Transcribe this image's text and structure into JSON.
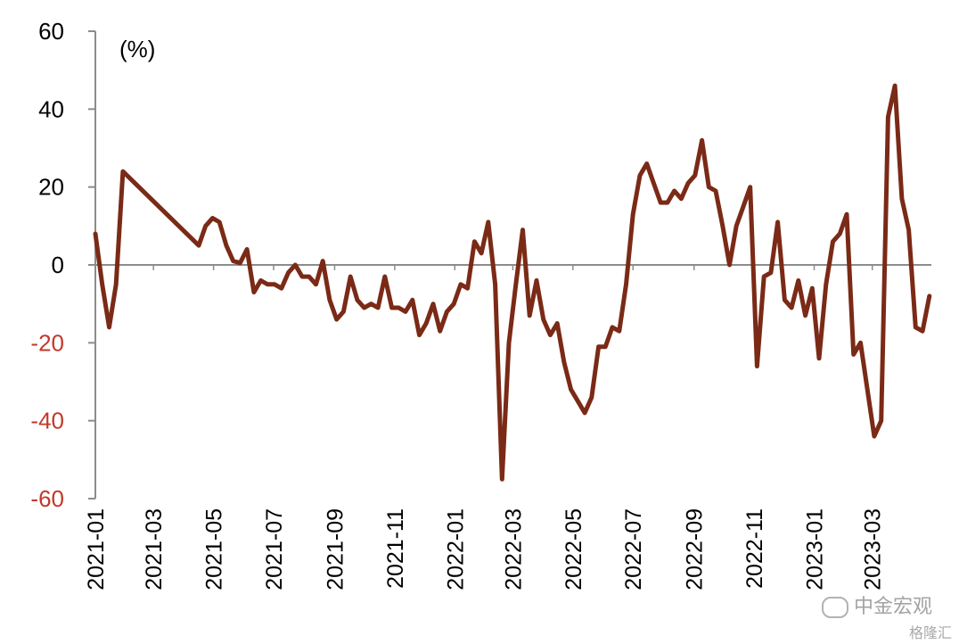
{
  "chart_data": {
    "type": "line",
    "unit_label": "(%)",
    "ylim": [
      -60,
      60
    ],
    "yticks": [
      60,
      40,
      20,
      0,
      -20,
      -40,
      -60
    ],
    "xticks": [
      "2021-01",
      "2021-03",
      "2021-05",
      "2021-07",
      "2021-09",
      "2021-11",
      "2022-01",
      "2022-03",
      "2022-05",
      "2022-07",
      "2022-09",
      "2022-11",
      "2023-01",
      "2023-03"
    ],
    "colors": {
      "line": "#7a2a16",
      "axis": "#8c8c8c",
      "positive_tick": "#000000",
      "negative_tick": "#c0392b"
    },
    "series": [
      {
        "points": [
          [
            "2021-01-01",
            8
          ],
          [
            "2021-01-08",
            -5
          ],
          [
            "2021-01-15",
            -16
          ],
          [
            "2021-01-22",
            -5
          ],
          [
            "2021-01-29",
            24
          ],
          [
            "2021-04-16",
            5
          ],
          [
            "2021-04-23",
            10
          ],
          [
            "2021-04-30",
            12
          ],
          [
            "2021-05-07",
            11
          ],
          [
            "2021-05-14",
            5
          ],
          [
            "2021-05-21",
            1
          ],
          [
            "2021-05-28",
            0.5
          ],
          [
            "2021-06-04",
            4
          ],
          [
            "2021-06-11",
            -7
          ],
          [
            "2021-06-18",
            -4
          ],
          [
            "2021-06-25",
            -5
          ],
          [
            "2021-07-02",
            -5
          ],
          [
            "2021-07-09",
            -6
          ],
          [
            "2021-07-16",
            -2
          ],
          [
            "2021-07-23",
            0
          ],
          [
            "2021-07-30",
            -3
          ],
          [
            "2021-08-06",
            -3
          ],
          [
            "2021-08-13",
            -5
          ],
          [
            "2021-08-20",
            1
          ],
          [
            "2021-08-27",
            -9
          ],
          [
            "2021-09-03",
            -14
          ],
          [
            "2021-09-10",
            -12
          ],
          [
            "2021-09-17",
            -3
          ],
          [
            "2021-09-24",
            -9
          ],
          [
            "2021-10-01",
            -11
          ],
          [
            "2021-10-08",
            -10
          ],
          [
            "2021-10-15",
            -11
          ],
          [
            "2021-10-22",
            -3
          ],
          [
            "2021-10-29",
            -11
          ],
          [
            "2021-11-05",
            -11
          ],
          [
            "2021-11-12",
            -12
          ],
          [
            "2021-11-19",
            -9
          ],
          [
            "2021-11-26",
            -18
          ],
          [
            "2021-12-03",
            -15
          ],
          [
            "2021-12-10",
            -10
          ],
          [
            "2021-12-17",
            -17
          ],
          [
            "2021-12-24",
            -12
          ],
          [
            "2021-12-31",
            -10
          ],
          [
            "2022-01-07",
            -5
          ],
          [
            "2022-01-14",
            -6
          ],
          [
            "2022-01-21",
            6
          ],
          [
            "2022-01-28",
            3
          ],
          [
            "2022-02-04",
            11
          ],
          [
            "2022-02-11",
            -5
          ],
          [
            "2022-02-18",
            -55
          ],
          [
            "2022-02-25",
            -20
          ],
          [
            "2022-03-04",
            -5
          ],
          [
            "2022-03-11",
            9
          ],
          [
            "2022-03-18",
            -13
          ],
          [
            "2022-03-25",
            -4
          ],
          [
            "2022-04-01",
            -14
          ],
          [
            "2022-04-08",
            -18
          ],
          [
            "2022-04-15",
            -15
          ],
          [
            "2022-04-22",
            -25
          ],
          [
            "2022-04-29",
            -32
          ],
          [
            "2022-05-06",
            -35
          ],
          [
            "2022-05-13",
            -38
          ],
          [
            "2022-05-20",
            -34
          ],
          [
            "2022-05-27",
            -21
          ],
          [
            "2022-06-03",
            -21
          ],
          [
            "2022-06-10",
            -16
          ],
          [
            "2022-06-17",
            -17
          ],
          [
            "2022-06-24",
            -5
          ],
          [
            "2022-07-01",
            13
          ],
          [
            "2022-07-08",
            23
          ],
          [
            "2022-07-15",
            26
          ],
          [
            "2022-07-22",
            21
          ],
          [
            "2022-07-29",
            16
          ],
          [
            "2022-08-05",
            16
          ],
          [
            "2022-08-12",
            19
          ],
          [
            "2022-08-19",
            17
          ],
          [
            "2022-08-26",
            21
          ],
          [
            "2022-09-02",
            23
          ],
          [
            "2022-09-09",
            32
          ],
          [
            "2022-09-16",
            20
          ],
          [
            "2022-09-23",
            19
          ],
          [
            "2022-09-30",
            10
          ],
          [
            "2022-10-07",
            0
          ],
          [
            "2022-10-14",
            10
          ],
          [
            "2022-10-21",
            15
          ],
          [
            "2022-10-28",
            20
          ],
          [
            "2022-11-04",
            -26
          ],
          [
            "2022-11-11",
            -3
          ],
          [
            "2022-11-18",
            -2
          ],
          [
            "2022-11-25",
            11
          ],
          [
            "2022-12-02",
            -9
          ],
          [
            "2022-12-09",
            -11
          ],
          [
            "2022-12-16",
            -4
          ],
          [
            "2022-12-23",
            -13
          ],
          [
            "2022-12-30",
            -6
          ],
          [
            "2023-01-06",
            -24
          ],
          [
            "2023-01-13",
            -5
          ],
          [
            "2023-01-20",
            6
          ],
          [
            "2023-01-27",
            8
          ],
          [
            "2023-02-03",
            13
          ],
          [
            "2023-02-10",
            -23
          ],
          [
            "2023-02-17",
            -20
          ],
          [
            "2023-02-24",
            -32
          ],
          [
            "2023-03-03",
            -44
          ],
          [
            "2023-03-10",
            -40
          ],
          [
            "2023-03-17",
            38
          ],
          [
            "2023-03-24",
            46
          ],
          [
            "2023-03-31",
            17
          ],
          [
            "2023-04-07",
            9
          ],
          [
            "2023-04-14",
            -16
          ],
          [
            "2023-04-21",
            -17
          ],
          [
            "2023-04-28",
            -8
          ]
        ]
      }
    ]
  },
  "watermark": {
    "primary": "中金宏观",
    "secondary": "格隆汇"
  }
}
